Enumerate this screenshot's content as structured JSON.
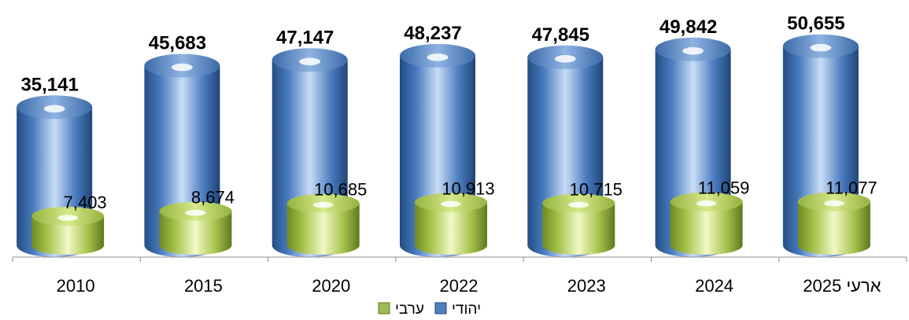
{
  "chart_data": {
    "type": "bar",
    "style": "3d-cylinder",
    "categories": [
      "2010",
      "2015",
      "2020",
      "2022",
      "2023",
      "2024",
      "2025 ארעי"
    ],
    "series": [
      {
        "name": "יהודי",
        "color": "#4f81bd",
        "values": [
          35141,
          45683,
          47147,
          48237,
          47845,
          49842,
          50655
        ],
        "labels": [
          "35,141",
          "45,683",
          "47,147",
          "48,237",
          "47,845",
          "49,842",
          "50,655"
        ]
      },
      {
        "name": "ערבי",
        "color": "#9bbb59",
        "values": [
          7403,
          8674,
          10685,
          10913,
          10715,
          11059,
          11077
        ],
        "labels": [
          "7,403",
          "8,674",
          "10,685",
          "10,913",
          "10,715",
          "11,059",
          "11,077"
        ]
      }
    ],
    "title": "",
    "xlabel": "",
    "ylabel": "",
    "ylim": [
      0,
      55000
    ],
    "grid": false,
    "legend": "bottom"
  }
}
